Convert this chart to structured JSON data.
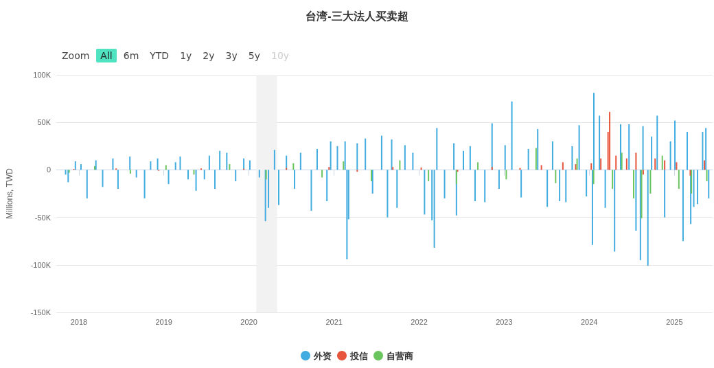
{
  "chart_data": {
    "type": "bar",
    "title": "台湾-三大法人买卖超",
    "ylabel": "Millions, TWD",
    "annotations": [
      "Zoom",
      "All",
      "6m",
      "YTD",
      "1y",
      "2y",
      "3y",
      "5y",
      "10y"
    ],
    "series": [
      {
        "name": "外资",
        "color": "#41ace0",
        "x": [
          "2017-11-05",
          "2017-11-16",
          "2017-12-17",
          "2018-01-10",
          "2018-02-05",
          "2018-03-15",
          "2018-04-13",
          "2018-05-27",
          "2018-06-18",
          "2018-08-08",
          "2018-09-05",
          "2018-10-10",
          "2018-11-05",
          "2018-12-05",
          "2019-01-21",
          "2019-02-20",
          "2019-03-12",
          "2019-04-15",
          "2019-05-19",
          "2019-06-24",
          "2019-07-15",
          "2019-08-08",
          "2019-08-29",
          "2019-09-28",
          "2019-11-05",
          "2019-12-10",
          "2020-01-05",
          "2020-02-15",
          "2020-03-12",
          "2020-03-25",
          "2020-04-20",
          "2020-05-08",
          "2020-06-10",
          "2020-07-15",
          "2020-08-10",
          "2020-09-25",
          "2020-10-20",
          "2020-12-01",
          "2020-12-17",
          "2021-01-15",
          "2021-02-17",
          "2021-02-25",
          "2021-03-04",
          "2021-04-10",
          "2021-05-15",
          "2021-06-15",
          "2021-07-24",
          "2021-08-18",
          "2021-09-05",
          "2021-09-28",
          "2021-11-01",
          "2021-12-05",
          "2022-01-24",
          "2022-02-25",
          "2022-03-07",
          "2022-03-18",
          "2022-04-20",
          "2022-05-30",
          "2022-06-10",
          "2022-07-10",
          "2022-08-08",
          "2022-08-29",
          "2022-10-10",
          "2022-11-10",
          "2022-12-10",
          "2023-01-05",
          "2023-02-03",
          "2023-03-15",
          "2023-04-15",
          "2023-05-25",
          "2023-07-05",
          "2023-07-28",
          "2023-08-27",
          "2023-09-23",
          "2023-10-20",
          "2023-11-19",
          "2023-12-20",
          "2024-01-15",
          "2024-01-21",
          "2024-02-14",
          "2024-03-10",
          "2024-04-19",
          "2024-05-15",
          "2024-06-20",
          "2024-07-20",
          "2024-08-08",
          "2024-08-19",
          "2024-09-09",
          "2024-09-25",
          "2024-10-19",
          "2024-11-20",
          "2024-12-15",
          "2025-01-03",
          "2025-02-07",
          "2025-02-25",
          "2025-03-12",
          "2025-03-25",
          "2025-04-10",
          "2025-05-02",
          "2025-05-16",
          "2025-05-28"
        ],
        "values": [
          -5000,
          -13000,
          9000,
          6000,
          -30000,
          10000,
          -18000,
          12000,
          -20000,
          14000,
          -8000,
          -30000,
          9000,
          12000,
          -15000,
          8000,
          14000,
          -10000,
          -22000,
          -10000,
          15000,
          -20000,
          20000,
          18000,
          -12000,
          12000,
          10000,
          -8000,
          -54000,
          -40000,
          21000,
          -37000,
          15000,
          -20000,
          18000,
          -43000,
          22000,
          -33000,
          30000,
          25000,
          30000,
          -94000,
          -52000,
          28000,
          33000,
          -25000,
          36000,
          -50000,
          32000,
          -40000,
          26000,
          18000,
          -47000,
          -53000,
          -82000,
          44000,
          -30000,
          28000,
          -48000,
          20000,
          25000,
          -33000,
          -34000,
          49000,
          -20000,
          26000,
          72000,
          -29000,
          22000,
          43000,
          -39000,
          30000,
          -33000,
          -34000,
          25000,
          47000,
          -28000,
          -79000,
          81000,
          57000,
          -40000,
          -86000,
          48000,
          48000,
          -64000,
          -95000,
          46000,
          -101000,
          35000,
          57000,
          -50000,
          30000,
          52000,
          -75000,
          40000,
          -57000,
          -39000,
          -36000,
          40000,
          44000,
          -30000
        ]
      },
      {
        "name": "投信",
        "color": "#e8553d",
        "x": [
          "2017-12-10",
          "2018-06-10",
          "2018-12-10",
          "2019-06-10",
          "2019-12-10",
          "2020-06-10",
          "2020-12-10",
          "2021-04-10",
          "2021-09-10",
          "2022-01-10",
          "2022-06-15",
          "2022-11-10",
          "2023-03-10",
          "2023-06-10",
          "2023-09-10",
          "2023-11-04",
          "2024-01-10",
          "2024-02-20",
          "2024-03-22",
          "2024-03-29",
          "2024-04-25",
          "2024-06-10",
          "2024-07-20",
          "2024-08-20",
          "2024-10-10",
          "2024-11-20",
          "2025-01-10",
          "2025-03-10",
          "2025-05-10"
        ],
        "values": [
          1000,
          1500,
          -1000,
          1500,
          1200,
          2000,
          3000,
          -2000,
          3000,
          2500,
          -2000,
          3000,
          2000,
          5000,
          8000,
          6000,
          7000,
          12000,
          40000,
          61000,
          15000,
          12000,
          18000,
          -5000,
          12000,
          10000,
          8000,
          -6000,
          10000
        ]
      },
      {
        "name": "自营商",
        "color": "#6ac55f",
        "x": [
          "2017-11-20",
          "2018-03-10",
          "2018-08-10",
          "2019-01-10",
          "2019-05-10",
          "2019-10-10",
          "2020-03-15",
          "2020-07-10",
          "2020-11-10",
          "2021-02-10",
          "2021-06-10",
          "2021-10-10",
          "2022-02-10",
          "2022-06-10",
          "2022-09-10",
          "2023-01-10",
          "2023-05-18",
          "2023-08-10",
          "2023-11-10",
          "2024-01-20",
          "2024-04-10",
          "2024-05-20",
          "2024-07-10",
          "2024-08-13",
          "2024-09-20",
          "2024-11-10",
          "2025-01-20",
          "2025-03-15",
          "2025-05-20"
        ],
        "values": [
          -3000,
          4000,
          -4000,
          5000,
          -5000,
          6000,
          -10000,
          7000,
          -8000,
          9000,
          -12000,
          10000,
          -12000,
          -15000,
          8000,
          -10000,
          23000,
          -14000,
          12000,
          -15000,
          -20000,
          18000,
          -30000,
          -51000,
          -25000,
          15000,
          -20000,
          -25000,
          -12000
        ]
      }
    ],
    "xlim": [
      "2017-09-26",
      "2025-06-14"
    ],
    "xticks": [
      "2018",
      "2019",
      "2020",
      "2021",
      "2022",
      "2023",
      "2024",
      "2025"
    ],
    "ylim": [
      -150000,
      100000
    ],
    "yticks": [
      {
        "value": -150000,
        "label": "-150K"
      },
      {
        "value": -100000,
        "label": "-100K"
      },
      {
        "value": -50000,
        "label": "-50K"
      },
      {
        "value": 0,
        "label": "0"
      },
      {
        "value": 50000,
        "label": "50K"
      },
      {
        "value": 100000,
        "label": "100K"
      }
    ],
    "bands": [
      {
        "axis": "x",
        "from": "2020-02-02",
        "to": "2020-05-01",
        "color": "#f2f2f2"
      }
    ],
    "grid": "y",
    "legend": "bottom"
  }
}
